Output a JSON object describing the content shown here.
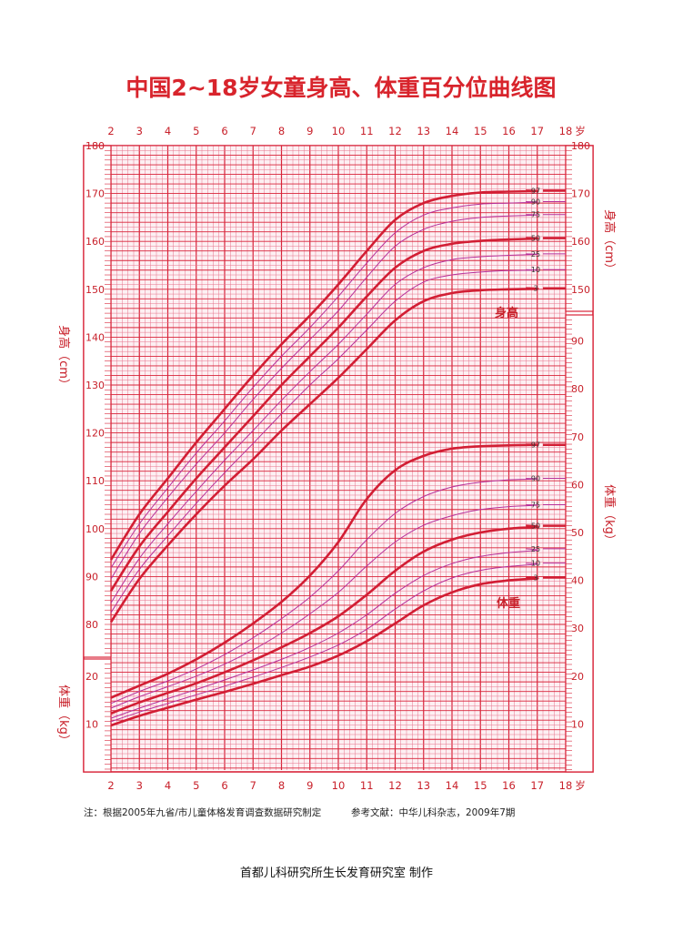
{
  "colors": {
    "grid": "#e8748c",
    "major": "#d8243a",
    "curve_main": "#d21e34",
    "curve_minor": "#b7309a",
    "text": "#c8202a"
  },
  "chart_data": {
    "type": "line",
    "title": "中国2~18岁女童身高、体重百分位曲线图",
    "age_unit": "岁",
    "x_ticks": [
      2,
      3,
      4,
      5,
      6,
      7,
      8,
      9,
      10,
      11,
      12,
      13,
      14,
      15,
      16,
      17,
      18
    ],
    "xlim": [
      2,
      18
    ],
    "height_axis": {
      "label_left": "身高（cm）",
      "label_right": "身高（cm）",
      "ylim": [
        75,
        180
      ],
      "ticks_left": [
        80,
        90,
        100,
        110,
        120,
        130,
        140,
        150,
        160,
        170,
        180
      ],
      "ticks_right": [
        150,
        160,
        170,
        180
      ]
    },
    "weight_axis": {
      "label_left": "体重（kg）",
      "label_right": "体重（kg）",
      "ylim": [
        0,
        95
      ],
      "ticks_left": [
        10,
        20
      ],
      "ticks_right": [
        10,
        20,
        30,
        40,
        50,
        60,
        70,
        80,
        90
      ]
    },
    "percentile_labels": [
      "97",
      "90",
      "75",
      "50",
      "25",
      "10",
      "3"
    ],
    "main_percentiles": [
      "97",
      "50",
      "3"
    ],
    "height_label": "身高",
    "weight_label": "体重",
    "x": [
      2,
      3,
      4,
      5,
      6,
      7,
      8,
      9,
      10,
      11,
      12,
      13,
      14,
      15,
      16,
      17,
      18
    ],
    "height_series": [
      {
        "name": "97",
        "values": [
          93.5,
          103,
          110.5,
          118,
          125,
          132,
          138.5,
          144.5,
          151,
          158,
          164.5,
          168,
          169.5,
          170.2,
          170.4,
          170.5,
          170.6
        ]
      },
      {
        "name": "90",
        "values": [
          91.8,
          101,
          108.5,
          115.8,
          122.5,
          129.5,
          136,
          142,
          148.5,
          155.5,
          161.8,
          165.5,
          167,
          167.8,
          168,
          168.2,
          168.3
        ]
      },
      {
        "name": "75",
        "values": [
          89.5,
          99,
          106.5,
          113.5,
          120,
          127,
          133.5,
          139.5,
          145.5,
          152.5,
          159,
          162.5,
          164.2,
          165,
          165.3,
          165.5,
          165.6
        ]
      },
      {
        "name": "50",
        "values": [
          87,
          96.3,
          103.5,
          110.5,
          117,
          123.5,
          130,
          136,
          142,
          148.5,
          154.5,
          158,
          159.5,
          160.1,
          160.4,
          160.6,
          160.7
        ]
      },
      {
        "name": "25",
        "values": [
          84.5,
          93.8,
          101,
          107.8,
          114.3,
          120.5,
          126.8,
          132.8,
          138.5,
          144.8,
          151,
          154.5,
          156.2,
          156.8,
          157.1,
          157.3,
          157.4
        ]
      },
      {
        "name": "10",
        "values": [
          82.5,
          91.5,
          98.5,
          105.3,
          111.7,
          117.8,
          124,
          130,
          135.5,
          141.5,
          147.5,
          151.5,
          153,
          153.6,
          153.9,
          154,
          154.1
        ]
      },
      {
        "name": "3",
        "values": [
          80.5,
          89.5,
          96.5,
          103,
          109,
          114.5,
          120.5,
          126,
          131.5,
          137.5,
          143.5,
          147.5,
          149.2,
          149.8,
          150,
          150.1,
          150.2
        ]
      }
    ],
    "weight_series": [
      {
        "name": "97",
        "values": [
          15.5,
          18,
          20.5,
          23.5,
          27,
          31,
          35.5,
          41,
          48,
          57,
          63,
          66,
          67.5,
          68,
          68.2,
          68.3,
          68.3
        ]
      },
      {
        "name": "90",
        "values": [
          14.3,
          16.8,
          19,
          21.5,
          24.5,
          28,
          32,
          36.5,
          42,
          48.5,
          54,
          57.5,
          59.5,
          60.5,
          61,
          61.2,
          61.3
        ]
      },
      {
        "name": "75",
        "values": [
          13.3,
          15.7,
          17.8,
          20,
          22.5,
          25.5,
          29,
          33,
          37.5,
          43,
          48,
          51.5,
          53.5,
          54.8,
          55.4,
          55.7,
          55.8
        ]
      },
      {
        "name": "50",
        "values": [
          12.2,
          14.5,
          16.5,
          18.5,
          20.8,
          23.3,
          26,
          29,
          32.5,
          37,
          42,
          46,
          48.5,
          50,
          50.8,
          51.2,
          51.4
        ]
      },
      {
        "name": "25",
        "values": [
          11.2,
          13.3,
          15.3,
          17.2,
          19.2,
          21.3,
          23.5,
          26,
          29,
          32.8,
          37.3,
          41,
          43.5,
          45,
          45.8,
          46.3,
          46.6
        ]
      },
      {
        "name": "10",
        "values": [
          10.5,
          12.5,
          14.3,
          16.1,
          17.9,
          19.8,
          21.8,
          24,
          26.5,
          29.8,
          34,
          37.8,
          40.5,
          42.1,
          42.9,
          43.4,
          43.6
        ]
      },
      {
        "name": "3",
        "values": [
          9.7,
          11.7,
          13.4,
          15.1,
          16.7,
          18.4,
          20.2,
          22,
          24.3,
          27.3,
          31,
          34.8,
          37.5,
          39.2,
          40,
          40.4,
          40.6
        ]
      }
    ]
  },
  "notes": {
    "left": "注：根据2005年九省/市儿童体格发育调查数据研究制定",
    "right": "参考文献：中华儿科杂志，2009年7期"
  },
  "credit": "首都儿科研究所生长发育研究室  制作"
}
